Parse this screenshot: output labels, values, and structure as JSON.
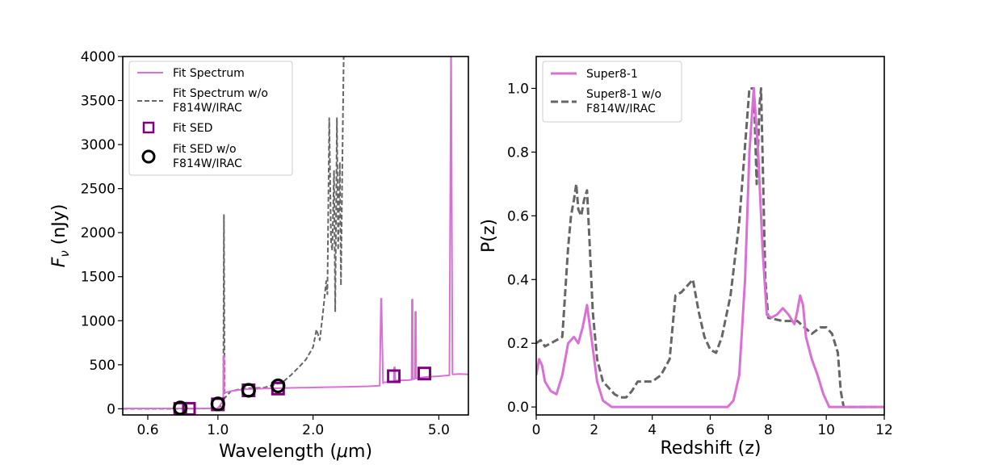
{
  "chart_data": [
    {
      "type": "line",
      "title": "",
      "xlabel_prefix": "Wavelength (",
      "xlabel_mu": "μ",
      "xlabel_suffix": "m)",
      "ylabel_main": "F",
      "ylabel_sub": "ν",
      "ylabel_suffix": " (nJy)",
      "xscale": "log",
      "xlim": [
        0.5,
        6.2
      ],
      "ylim": [
        -70,
        4000
      ],
      "xticks": [
        0.6,
        1.0,
        2.0,
        5.0
      ],
      "xtick_labels": [
        "0.6",
        "1.0",
        "2.0",
        "5.0"
      ],
      "yticks": [
        0,
        500,
        1000,
        1500,
        2000,
        2500,
        3000,
        3500,
        4000
      ],
      "ytick_labels": [
        "0",
        "500",
        "1000",
        "1500",
        "2000",
        "2500",
        "3000",
        "3500",
        "4000"
      ],
      "colors": {
        "fit": "#da70d6",
        "nofit": "#666666",
        "sed": "#800080",
        "sed_nofit": "#000000"
      },
      "legend_position": "upper-left",
      "legend": [
        {
          "label": [
            "Fit Spectrum"
          ],
          "marker": "line",
          "style": "fit"
        },
        {
          "label": [
            "Fit Spectrum w/o",
            "F814W/IRAC"
          ],
          "marker": "dashed",
          "style": "nofit"
        },
        {
          "label": [
            "Fit SED"
          ],
          "marker": "square",
          "style": "sed"
        },
        {
          "label": [
            "Fit SED w/o",
            "F814W/IRAC"
          ],
          "marker": "circle",
          "style": "sed_nofit"
        }
      ],
      "series": [
        {
          "name": "Fit Spectrum",
          "style": "fit",
          "x": [
            0.5,
            0.7,
            0.9,
            1.0,
            1.02,
            1.04,
            1.041,
            1.046,
            1.047,
            1.1,
            1.2,
            1.4,
            1.6,
            1.8,
            2.0,
            2.2,
            2.5,
            3.0,
            3.25,
            3.28,
            3.29,
            3.33,
            3.34,
            3.5,
            3.6,
            3.61,
            3.63,
            3.64,
            4.0,
            4.1,
            4.11,
            4.13,
            4.14,
            4.2,
            4.21,
            4.23,
            4.24,
            4.5,
            5.0,
            5.4,
            5.46,
            5.47,
            5.52,
            5.53,
            5.8,
            6.2
          ],
          "y": [
            3,
            3,
            3,
            5,
            50,
            100,
            600,
            600,
            180,
            200,
            220,
            230,
            235,
            240,
            242,
            245,
            248,
            255,
            262,
            1250,
            1250,
            290,
            300,
            305,
            310,
            470,
            470,
            320,
            325,
            330,
            1240,
            1240,
            335,
            340,
            1100,
            1100,
            345,
            360,
            370,
            380,
            4000,
            4000,
            400,
            390,
            395,
            390
          ]
        },
        {
          "name": "Fit Spectrum w/o F814W/IRAC",
          "style": "nofit",
          "x": [
            0.5,
            0.7,
            0.9,
            1.0,
            1.04,
            1.045,
            1.05,
            1.1,
            1.2,
            1.4,
            1.6,
            1.7,
            1.8,
            1.9,
            2.0,
            2.05,
            2.1,
            2.15,
            2.2,
            2.22,
            2.25,
            2.28,
            2.3,
            2.33,
            2.35,
            2.38,
            2.4,
            2.43,
            2.45,
            2.48,
            2.5
          ],
          "y": [
            0,
            0,
            2,
            10,
            50,
            2200,
            120,
            200,
            230,
            240,
            300,
            380,
            470,
            560,
            700,
            900,
            780,
            1100,
            1450,
            1300,
            3300,
            1900,
            1800,
            2700,
            1100,
            3300,
            1800,
            2800,
            1400,
            3000,
            4000
          ]
        }
      ],
      "points": [
        {
          "name": "Fit SED",
          "style": "sed",
          "marker": "square",
          "x": [
            0.76,
            0.81,
            1.0,
            1.25,
            1.55,
            3.6,
            4.5
          ],
          "y": [
            0,
            0,
            50,
            210,
            230,
            370,
            400
          ]
        },
        {
          "name": "Fit SED w/o F814W/IRAC",
          "style": "sed_nofit",
          "marker": "circle",
          "x": [
            0.76,
            1.0,
            1.25,
            1.55
          ],
          "y": [
            10,
            55,
            210,
            260
          ]
        }
      ]
    },
    {
      "type": "line",
      "title": "",
      "xlabel": "Redshift (z)",
      "ylabel": "P(z)",
      "xlim": [
        0,
        12
      ],
      "ylim": [
        -0.025,
        1.1
      ],
      "xticks": [
        0,
        2,
        4,
        6,
        8,
        10,
        12
      ],
      "xtick_labels": [
        "0",
        "2",
        "4",
        "6",
        "8",
        "10",
        "12"
      ],
      "yticks": [
        0.0,
        0.2,
        0.4,
        0.6,
        0.8,
        1.0
      ],
      "ytick_labels": [
        "0.0",
        "0.2",
        "0.4",
        "0.6",
        "0.8",
        "1.0"
      ],
      "colors": {
        "fit": "#da70d6",
        "nofit": "#666666"
      },
      "legend_position": "upper-left",
      "legend": [
        {
          "label": [
            "Super8-1"
          ],
          "marker": "line",
          "style": "fit"
        },
        {
          "label": [
            "Super8-1 w/o",
            "F814W/IRAC"
          ],
          "marker": "dashed",
          "style": "nofit"
        }
      ],
      "series": [
        {
          "name": "Super8-1",
          "style": "fit",
          "x": [
            0,
            0.1,
            0.2,
            0.3,
            0.5,
            0.7,
            0.9,
            1.1,
            1.3,
            1.45,
            1.6,
            1.75,
            1.9,
            2.1,
            2.3,
            2.6,
            3.0,
            4.0,
            5.0,
            6.0,
            6.6,
            6.8,
            7.0,
            7.2,
            7.35,
            7.5,
            7.65,
            7.8,
            7.95,
            8.1,
            8.3,
            8.5,
            8.7,
            8.9,
            9.0,
            9.1,
            9.2,
            9.3,
            9.5,
            9.7,
            9.9,
            10.1,
            10.3,
            10.5,
            11,
            12
          ],
          "y": [
            0.1,
            0.15,
            0.13,
            0.08,
            0.05,
            0.04,
            0.1,
            0.2,
            0.22,
            0.2,
            0.25,
            0.32,
            0.22,
            0.08,
            0.02,
            0.0,
            0.0,
            0.0,
            0.0,
            0.0,
            0.0,
            0.02,
            0.1,
            0.4,
            0.8,
            1.0,
            0.8,
            0.5,
            0.29,
            0.28,
            0.29,
            0.31,
            0.29,
            0.26,
            0.3,
            0.35,
            0.32,
            0.22,
            0.15,
            0.1,
            0.04,
            0.0,
            0.0,
            0.0,
            0.0,
            0.0
          ]
        },
        {
          "name": "Super8-1 w/o F814W/IRAC",
          "style": "nofit",
          "x": [
            0,
            0.15,
            0.3,
            0.5,
            0.7,
            0.9,
            1.1,
            1.2,
            1.3,
            1.38,
            1.45,
            1.55,
            1.65,
            1.75,
            1.85,
            1.95,
            2.1,
            2.3,
            2.5,
            2.7,
            2.9,
            3.1,
            3.3,
            3.5,
            3.7,
            4.0,
            4.3,
            4.6,
            4.8,
            5.0,
            5.2,
            5.4,
            5.6,
            5.8,
            6.0,
            6.2,
            6.4,
            6.7,
            7.0,
            7.2,
            7.35,
            7.5,
            7.6,
            7.7,
            7.75,
            7.8,
            7.9,
            8.0,
            8.5,
            9.0,
            9.5,
            9.8,
            10.0,
            10.2,
            10.4,
            10.5,
            10.6,
            11,
            12
          ],
          "y": [
            0.2,
            0.21,
            0.19,
            0.2,
            0.21,
            0.22,
            0.5,
            0.6,
            0.65,
            0.7,
            0.62,
            0.6,
            0.65,
            0.68,
            0.5,
            0.3,
            0.15,
            0.08,
            0.06,
            0.04,
            0.03,
            0.03,
            0.05,
            0.08,
            0.08,
            0.08,
            0.1,
            0.15,
            0.35,
            0.36,
            0.38,
            0.4,
            0.3,
            0.22,
            0.18,
            0.17,
            0.22,
            0.35,
            0.58,
            0.82,
            1.0,
            1.0,
            0.7,
            0.95,
            1.0,
            0.8,
            0.4,
            0.28,
            0.27,
            0.27,
            0.23,
            0.25,
            0.25,
            0.23,
            0.17,
            0.05,
            0.0,
            0.0,
            0.0
          ]
        }
      ]
    }
  ]
}
